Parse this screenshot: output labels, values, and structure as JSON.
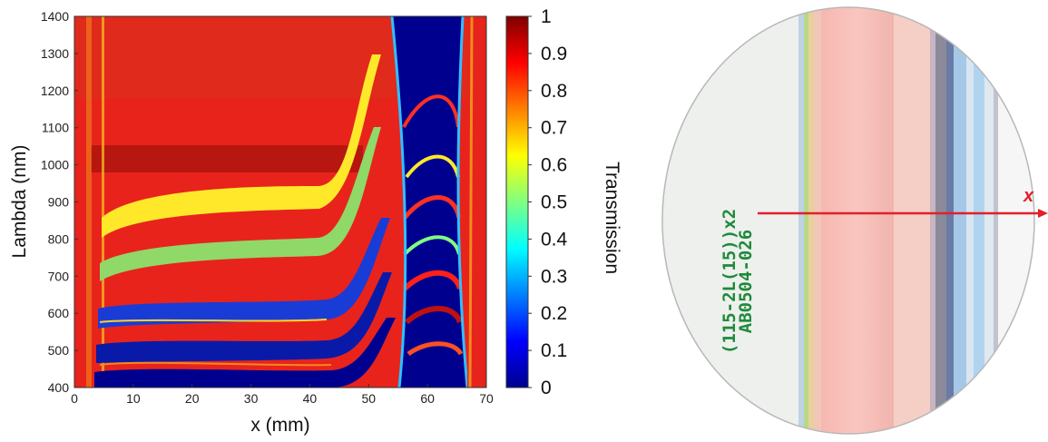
{
  "chart_data": {
    "type": "heatmap",
    "title": "",
    "xlabel": "x (mm)",
    "ylabel": "Lambda (nm)",
    "xlim": [
      0,
      70
    ],
    "ylim": [
      400,
      1400
    ],
    "x_ticks": [
      0,
      10,
      20,
      30,
      40,
      50,
      60,
      70
    ],
    "y_ticks": [
      400,
      500,
      600,
      700,
      800,
      900,
      1000,
      1100,
      1200,
      1300,
      1400
    ],
    "colorbar": {
      "label": "Transmission",
      "range": [
        0,
        1
      ],
      "ticks": [
        "0",
        "0.1",
        "0.2",
        "0.3",
        "0.4",
        "0.5",
        "0.6",
        "0.7",
        "0.8",
        "0.9",
        "1"
      ],
      "colormap": "jet"
    },
    "colors": {
      "low": "#00008f",
      "mid": "#8fff70",
      "high": "#8a0000"
    }
  },
  "photo": {
    "axis_label": "x",
    "sample_label_line1": "AB0504-026",
    "sample_label_line2": "(115-2L(15))x2",
    "arrow_color": "#e0202a"
  }
}
